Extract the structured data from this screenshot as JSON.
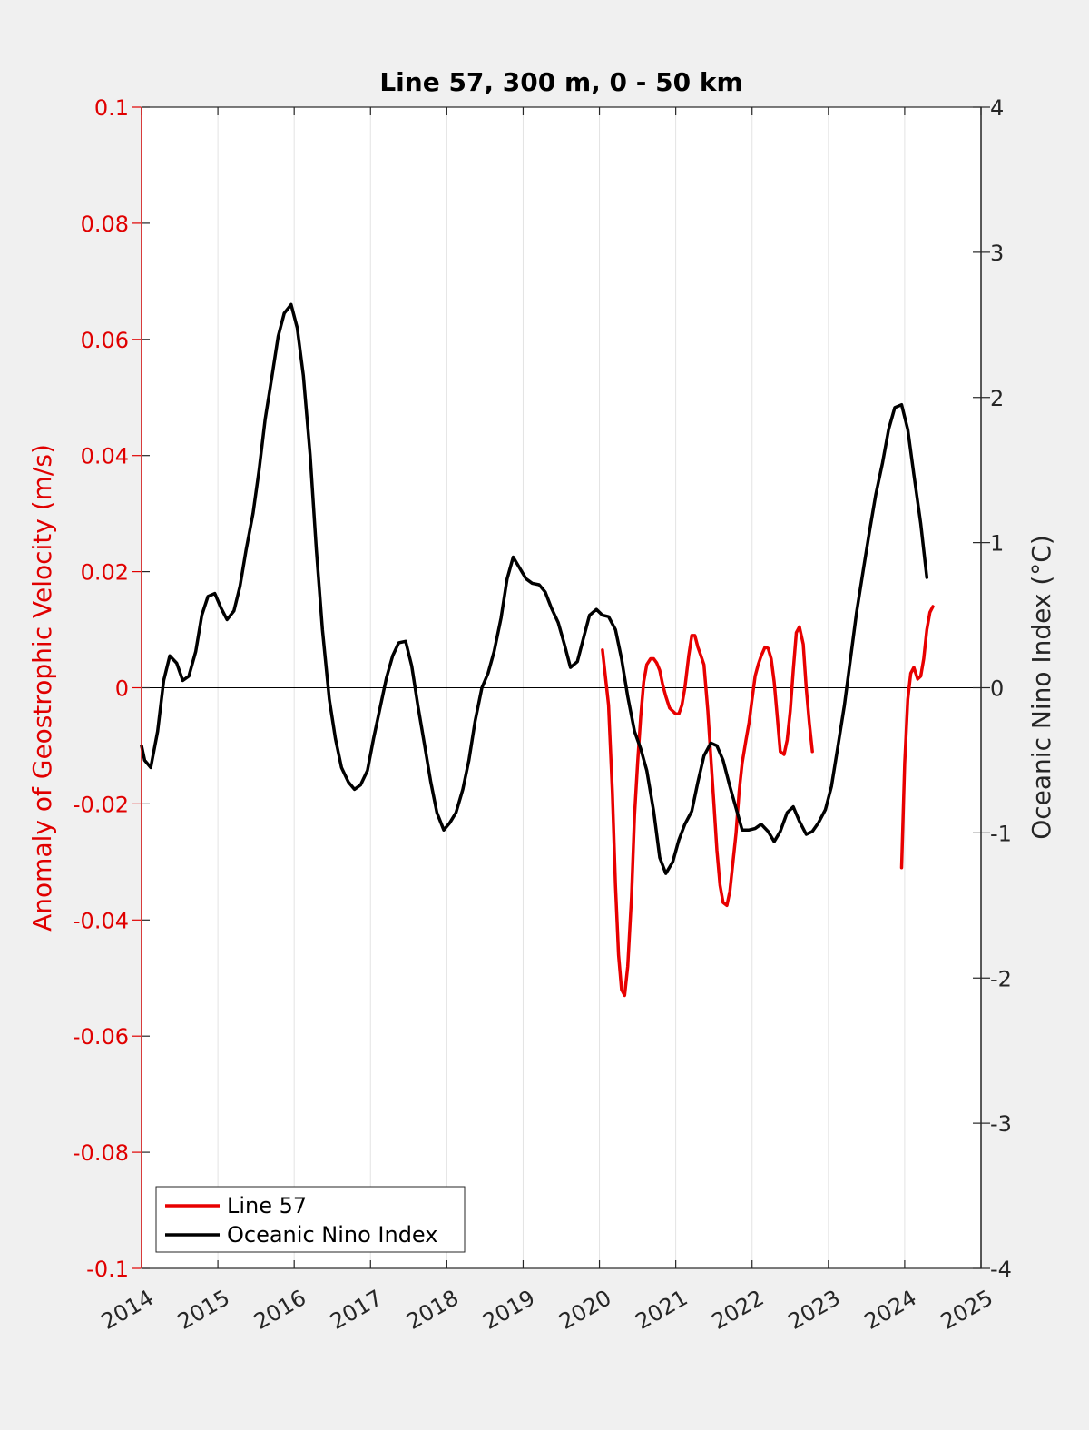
{
  "chart_data": {
    "type": "line",
    "title": "Line 57, 300 m, 0 - 50 km",
    "ylabel_left": "Anomaly of Geostrophic Velocity (m/s)",
    "ylabel_right": "Oceanic Nino Index (°C)",
    "xlabel": "",
    "xlim": [
      2014,
      2025
    ],
    "ylim_left": [
      -0.1,
      0.1
    ],
    "ylim_right": [
      -4,
      4
    ],
    "x_ticks": [
      2014,
      2015,
      2016,
      2017,
      2018,
      2019,
      2020,
      2021,
      2022,
      2023,
      2024,
      2025
    ],
    "x_tick_labels": [
      "2014",
      "2015",
      "2016",
      "2017",
      "2018",
      "2019",
      "2020",
      "2021",
      "2022",
      "2023",
      "2024",
      "2025"
    ],
    "y_left_ticks": [
      -0.1,
      -0.08,
      -0.06,
      -0.04,
      -0.02,
      0,
      0.02,
      0.04,
      0.06,
      0.08,
      0.1
    ],
    "y_left_tick_labels": [
      "-0.1",
      "-0.08",
      "-0.06",
      "-0.04",
      "-0.02",
      "0",
      "0.02",
      "0.04",
      "0.06",
      "0.08",
      "0.1"
    ],
    "y_right_ticks": [
      -4,
      -3,
      -2,
      -1,
      0,
      1,
      2,
      3,
      4
    ],
    "y_right_tick_labels": [
      "-4",
      "-3",
      "-2",
      "-1",
      "0",
      "1",
      "2",
      "3",
      "4"
    ],
    "grid": "vertical",
    "legend_position": "bottom-left",
    "colors": {
      "left_axis": "#e00000",
      "right_axis": "#000000",
      "line57": "#e80000",
      "oni": "#000000",
      "plot_bg": "#ffffff",
      "figure_bg": "#f0f0f0"
    },
    "series": [
      {
        "name": "Line 57",
        "axis": "left",
        "segments": [
          [
            [
              2020.04,
              0.0065
            ],
            [
              2020.12,
              -0.003
            ],
            [
              2020.17,
              -0.018
            ],
            [
              2020.21,
              -0.034
            ],
            [
              2020.25,
              -0.046
            ],
            [
              2020.29,
              -0.052
            ],
            [
              2020.33,
              -0.053
            ],
            [
              2020.37,
              -0.048
            ],
            [
              2020.42,
              -0.036
            ],
            [
              2020.46,
              -0.022
            ],
            [
              2020.5,
              -0.013
            ],
            [
              2020.54,
              -0.005
            ],
            [
              2020.58,
              0.001
            ],
            [
              2020.62,
              0.004
            ],
            [
              2020.67,
              0.005
            ],
            [
              2020.71,
              0.005
            ],
            [
              2020.75,
              0.0043
            ],
            [
              2020.79,
              0.003
            ],
            [
              2020.83,
              0.0005
            ],
            [
              2020.87,
              -0.0015
            ],
            [
              2020.92,
              -0.0035
            ],
            [
              2020.96,
              -0.004
            ],
            [
              2021.0,
              -0.0045
            ],
            [
              2021.04,
              -0.0045
            ],
            [
              2021.08,
              -0.003
            ],
            [
              2021.12,
              0.0
            ],
            [
              2021.17,
              0.0055
            ],
            [
              2021.21,
              0.009
            ],
            [
              2021.25,
              0.009
            ],
            [
              2021.29,
              0.007
            ],
            [
              2021.33,
              0.0055
            ],
            [
              2021.37,
              0.004
            ],
            [
              2021.42,
              -0.004
            ],
            [
              2021.46,
              -0.012
            ],
            [
              2021.5,
              -0.02
            ],
            [
              2021.54,
              -0.028
            ],
            [
              2021.58,
              -0.034
            ],
            [
              2021.62,
              -0.037
            ],
            [
              2021.67,
              -0.0375
            ],
            [
              2021.71,
              -0.035
            ],
            [
              2021.75,
              -0.03
            ],
            [
              2021.79,
              -0.025
            ],
            [
              2021.83,
              -0.018
            ],
            [
              2021.87,
              -0.013
            ],
            [
              2021.92,
              -0.009
            ],
            [
              2021.96,
              -0.006
            ],
            [
              2022.0,
              -0.002
            ],
            [
              2022.04,
              0.002
            ],
            [
              2022.08,
              0.004
            ],
            [
              2022.12,
              0.0055
            ],
            [
              2022.17,
              0.007
            ],
            [
              2022.21,
              0.0068
            ],
            [
              2022.25,
              0.005
            ],
            [
              2022.29,
              0.001
            ],
            [
              2022.33,
              -0.005
            ],
            [
              2022.37,
              -0.011
            ],
            [
              2022.42,
              -0.0115
            ],
            [
              2022.46,
              -0.009
            ],
            [
              2022.5,
              -0.004
            ],
            [
              2022.54,
              0.003
            ],
            [
              2022.58,
              0.0095
            ],
            [
              2022.62,
              0.0105
            ],
            [
              2022.67,
              0.0075
            ],
            [
              2022.71,
              0.0
            ],
            [
              2022.75,
              -0.006
            ],
            [
              2022.79,
              -0.011
            ]
          ],
          [
            [
              2023.96,
              -0.031
            ],
            [
              2024.0,
              -0.013
            ],
            [
              2024.04,
              -0.002
            ],
            [
              2024.08,
              0.0025
            ],
            [
              2024.12,
              0.0035
            ],
            [
              2024.17,
              0.0015
            ],
            [
              2024.21,
              0.002
            ],
            [
              2024.25,
              0.005
            ],
            [
              2024.29,
              0.01
            ],
            [
              2024.33,
              0.013
            ],
            [
              2024.37,
              0.014
            ]
          ]
        ]
      },
      {
        "name": "Oceanic Nino Index",
        "axis": "right",
        "points": [
          [
            2014.0,
            -0.4
          ],
          [
            2014.04,
            -0.5
          ],
          [
            2014.12,
            -0.55
          ],
          [
            2014.21,
            -0.3
          ],
          [
            2014.29,
            0.05
          ],
          [
            2014.37,
            0.22
          ],
          [
            2014.46,
            0.17
          ],
          [
            2014.54,
            0.05
          ],
          [
            2014.62,
            0.08
          ],
          [
            2014.71,
            0.25
          ],
          [
            2014.79,
            0.5
          ],
          [
            2014.87,
            0.63
          ],
          [
            2014.96,
            0.65
          ],
          [
            2015.04,
            0.55
          ],
          [
            2015.12,
            0.47
          ],
          [
            2015.21,
            0.53
          ],
          [
            2015.29,
            0.7
          ],
          [
            2015.37,
            0.95
          ],
          [
            2015.46,
            1.2
          ],
          [
            2015.54,
            1.5
          ],
          [
            2015.62,
            1.85
          ],
          [
            2015.71,
            2.15
          ],
          [
            2015.79,
            2.42
          ],
          [
            2015.87,
            2.58
          ],
          [
            2015.96,
            2.64
          ],
          [
            2016.04,
            2.48
          ],
          [
            2016.12,
            2.15
          ],
          [
            2016.21,
            1.6
          ],
          [
            2016.29,
            0.95
          ],
          [
            2016.37,
            0.4
          ],
          [
            2016.46,
            -0.08
          ],
          [
            2016.54,
            -0.35
          ],
          [
            2016.62,
            -0.55
          ],
          [
            2016.71,
            -0.65
          ],
          [
            2016.79,
            -0.7
          ],
          [
            2016.87,
            -0.67
          ],
          [
            2016.96,
            -0.57
          ],
          [
            2017.04,
            -0.35
          ],
          [
            2017.12,
            -0.15
          ],
          [
            2017.21,
            0.07
          ],
          [
            2017.29,
            0.22
          ],
          [
            2017.37,
            0.31
          ],
          [
            2017.46,
            0.32
          ],
          [
            2017.54,
            0.15
          ],
          [
            2017.62,
            -0.12
          ],
          [
            2017.71,
            -0.4
          ],
          [
            2017.79,
            -0.65
          ],
          [
            2017.87,
            -0.86
          ],
          [
            2017.96,
            -0.98
          ],
          [
            2018.04,
            -0.93
          ],
          [
            2018.12,
            -0.86
          ],
          [
            2018.21,
            -0.7
          ],
          [
            2018.29,
            -0.5
          ],
          [
            2018.37,
            -0.23
          ],
          [
            2018.46,
            0.0
          ],
          [
            2018.54,
            0.1
          ],
          [
            2018.62,
            0.25
          ],
          [
            2018.71,
            0.48
          ],
          [
            2018.79,
            0.75
          ],
          [
            2018.87,
            0.9
          ],
          [
            2018.96,
            0.82
          ],
          [
            2019.04,
            0.75
          ],
          [
            2019.12,
            0.72
          ],
          [
            2019.21,
            0.71
          ],
          [
            2019.29,
            0.66
          ],
          [
            2019.37,
            0.55
          ],
          [
            2019.46,
            0.45
          ],
          [
            2019.54,
            0.3
          ],
          [
            2019.62,
            0.14
          ],
          [
            2019.71,
            0.18
          ],
          [
            2019.79,
            0.34
          ],
          [
            2019.87,
            0.5
          ],
          [
            2019.96,
            0.54
          ],
          [
            2020.04,
            0.5
          ],
          [
            2020.12,
            0.49
          ],
          [
            2020.21,
            0.4
          ],
          [
            2020.29,
            0.2
          ],
          [
            2020.37,
            -0.06
          ],
          [
            2020.46,
            -0.3
          ],
          [
            2020.54,
            -0.42
          ],
          [
            2020.62,
            -0.57
          ],
          [
            2020.71,
            -0.85
          ],
          [
            2020.79,
            -1.17
          ],
          [
            2020.87,
            -1.28
          ],
          [
            2020.96,
            -1.2
          ],
          [
            2021.04,
            -1.05
          ],
          [
            2021.12,
            -0.94
          ],
          [
            2021.21,
            -0.85
          ],
          [
            2021.29,
            -0.65
          ],
          [
            2021.37,
            -0.47
          ],
          [
            2021.46,
            -0.38
          ],
          [
            2021.54,
            -0.4
          ],
          [
            2021.62,
            -0.5
          ],
          [
            2021.71,
            -0.68
          ],
          [
            2021.79,
            -0.83
          ],
          [
            2021.87,
            -0.98
          ],
          [
            2021.96,
            -0.98
          ],
          [
            2022.04,
            -0.97
          ],
          [
            2022.12,
            -0.94
          ],
          [
            2022.21,
            -0.99
          ],
          [
            2022.29,
            -1.06
          ],
          [
            2022.37,
            -0.99
          ],
          [
            2022.46,
            -0.86
          ],
          [
            2022.54,
            -0.82
          ],
          [
            2022.62,
            -0.92
          ],
          [
            2022.71,
            -1.01
          ],
          [
            2022.79,
            -0.99
          ],
          [
            2022.87,
            -0.93
          ],
          [
            2022.96,
            -0.84
          ],
          [
            2023.04,
            -0.68
          ],
          [
            2023.12,
            -0.42
          ],
          [
            2023.21,
            -0.12
          ],
          [
            2023.29,
            0.2
          ],
          [
            2023.37,
            0.52
          ],
          [
            2023.46,
            0.82
          ],
          [
            2023.54,
            1.08
          ],
          [
            2023.62,
            1.33
          ],
          [
            2023.71,
            1.55
          ],
          [
            2023.79,
            1.78
          ],
          [
            2023.87,
            1.93
          ],
          [
            2023.96,
            1.95
          ],
          [
            2024.04,
            1.78
          ],
          [
            2024.12,
            1.47
          ],
          [
            2024.21,
            1.13
          ],
          [
            2024.29,
            0.76
          ]
        ]
      }
    ]
  }
}
